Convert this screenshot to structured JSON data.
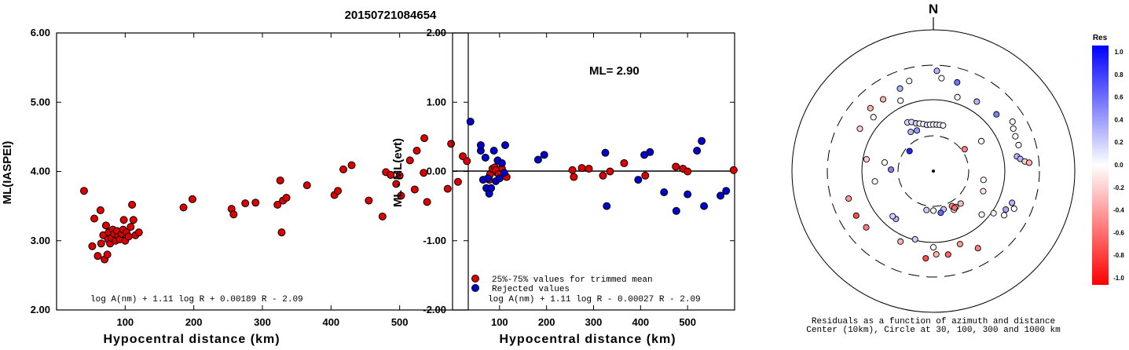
{
  "title": "20150721084654",
  "colors": {
    "red": "#dd0000",
    "blue": "#0000cc"
  },
  "chart_data": [
    {
      "type": "scatter",
      "id": "ml_vs_distance",
      "xlabel": "Hypocentral distance (km)",
      "ylabel": "ML(IASPEI)",
      "xlim": [
        0,
        600
      ],
      "ylim": [
        2.0,
        6.0
      ],
      "xticks": [
        "100",
        "200",
        "300",
        "400",
        "500"
      ],
      "yticks": [
        "2.00",
        "3.00",
        "4.00",
        "5.00",
        "6.00"
      ],
      "formula": "log A(nm) + 1.11 log R + 0.00189 R - 2.09",
      "series": [
        {
          "color": "red",
          "x": [
            40,
            52,
            55,
            60,
            64,
            65,
            68,
            70,
            72,
            74,
            75,
            76,
            78,
            80,
            82,
            84,
            86,
            88,
            90,
            92,
            95,
            97,
            98,
            100,
            102,
            105,
            108,
            110,
            112,
            115,
            120,
            185,
            198,
            255,
            258,
            275,
            290,
            322,
            326,
            328,
            330,
            335,
            365,
            405,
            410,
            418,
            430,
            455,
            475,
            480,
            487,
            495,
            500,
            502,
            515,
            522,
            525,
            535,
            536,
            540,
            570,
            575,
            585,
            592,
            598
          ],
          "y": [
            3.72,
            2.92,
            3.32,
            2.78,
            3.44,
            2.96,
            3.08,
            2.73,
            3.22,
            2.8,
            3.02,
            3.12,
            2.96,
            3.04,
            3.16,
            3.1,
            3.0,
            3.14,
            3.06,
            3.02,
            3.1,
            3.16,
            3.3,
            3.0,
            3.12,
            3.06,
            3.2,
            3.52,
            3.3,
            3.08,
            3.12,
            3.48,
            3.6,
            3.46,
            3.38,
            3.54,
            3.55,
            3.52,
            3.87,
            3.12,
            3.58,
            3.62,
            3.8,
            3.66,
            3.72,
            4.03,
            4.09,
            3.58,
            3.35,
            3.99,
            3.95,
            3.82,
            3.94,
            3.65,
            4.16,
            3.74,
            4.3,
            3.98,
            4.48,
            3.56,
            3.75,
            4.4,
            3.85,
            4.22,
            4.15
          ]
        }
      ]
    },
    {
      "type": "scatter",
      "id": "residuals_vs_distance",
      "xlabel": "Hypocentral distance (km)",
      "ylabel": "ML - ML(evt)",
      "xlim": [
        0,
        600
      ],
      "ylim": [
        -2.0,
        2.0
      ],
      "xticks": [
        "100",
        "200",
        "300",
        "400",
        "500"
      ],
      "yticks": [
        "-2.00",
        "-1.00",
        "0.00",
        "1.00",
        "2.00"
      ],
      "annotation": "ML= 2.90",
      "formula": "log A(nm) + 1.11 log R - 0.00027 R - 2.09",
      "series": [
        {
          "name": "25%-75% values for trimmed mean",
          "color": "red",
          "x": [
            80,
            85,
            90,
            95,
            100,
            105,
            110,
            115,
            78,
            92,
            98,
            255,
            258,
            275,
            290,
            320,
            335,
            365,
            410,
            475,
            490,
            500,
            598
          ],
          "y": [
            -0.04,
            0.04,
            0.06,
            -0.02,
            0.0,
            0.04,
            -0.06,
            -0.08,
            -0.12,
            0.02,
            -0.04,
            0.02,
            -0.08,
            0.05,
            0.04,
            -0.06,
            0.0,
            0.12,
            -0.06,
            0.07,
            0.04,
            0.0,
            0.02
          ]
        },
        {
          "name": "Rejected values",
          "color": "blue",
          "x": [
            38,
            60,
            65,
            70,
            72,
            75,
            78,
            82,
            88,
            92,
            96,
            100,
            105,
            110,
            112,
            60,
            182,
            195,
            325,
            328,
            395,
            408,
            420,
            450,
            476,
            500,
            520,
            530,
            535,
            570,
            582
          ],
          "y": [
            0.72,
            0.3,
            -0.12,
            0.2,
            -0.24,
            -0.1,
            -0.32,
            -0.24,
            0.3,
            -0.14,
            0.16,
            -0.1,
            0.12,
            -0.02,
            0.38,
            0.38,
            0.17,
            0.24,
            0.27,
            -0.5,
            -0.12,
            0.24,
            0.28,
            -0.3,
            -0.57,
            -0.33,
            0.3,
            0.44,
            -0.5,
            -0.35,
            -0.28
          ]
        }
      ]
    },
    {
      "type": "scatter",
      "id": "azimuth_residuals",
      "direction_label": "N",
      "caption_line1": "Residuals as a function of azimuth and distance",
      "caption_line2": "Center (10km), Circle at 30, 100, 300 and 1000 km",
      "colorbar_title": "Res",
      "colorbar_ticks": [
        "1.0",
        "0.8",
        "0.6",
        "0.4",
        "0.2",
        "0.0",
        "-0.2",
        "-0.4",
        "-0.6",
        "-0.8",
        "-1.0"
      ],
      "points": [
        {
          "azimuth": 2,
          "r": 0.71,
          "res": 0.3
        },
        {
          "azimuth": 5,
          "r": 0.66,
          "res": 0.0
        },
        {
          "azimuth": 15,
          "r": 0.65,
          "res": 0.55
        },
        {
          "azimuth": 18,
          "r": 0.55,
          "res": 0.0
        },
        {
          "azimuth": 32,
          "r": 0.58,
          "res": 0.3
        },
        {
          "azimuth": -25,
          "r": 0.55,
          "res": 0.0
        },
        {
          "azimuth": -45,
          "r": 0.63,
          "res": -0.3
        },
        {
          "azimuth": -28,
          "r": 0.39,
          "res": 0.15
        },
        {
          "azimuth": -24,
          "r": 0.38,
          "res": 0.15
        },
        {
          "azimuth": -20,
          "r": 0.36,
          "res": 0.2
        },
        {
          "azimuth": -16,
          "r": 0.35,
          "res": 0.0
        },
        {
          "azimuth": -12,
          "r": 0.34,
          "res": 0.0
        },
        {
          "azimuth": -8,
          "r": 0.33,
          "res": 0.15
        },
        {
          "azimuth": -4,
          "r": 0.33,
          "res": 0.0
        },
        {
          "azimuth": 0,
          "r": 0.33,
          "res": 0.0
        },
        {
          "azimuth": 4,
          "r": 0.33,
          "res": 0.1
        },
        {
          "azimuth": 8,
          "r": 0.33,
          "res": 0.0
        },
        {
          "azimuth": 12,
          "r": 0.33,
          "res": 0.05
        },
        {
          "azimuth": -30,
          "r": 0.32,
          "res": 0.3
        },
        {
          "azimuth": -22,
          "r": 0.31,
          "res": 0.4
        },
        {
          "azimuth": -50,
          "r": 0.22,
          "res": 0.85
        },
        {
          "azimuth": -80,
          "r": 0.35,
          "res": 0.0
        },
        {
          "azimuth": 55,
          "r": 0.27,
          "res": -0.5
        },
        {
          "azimuth": 58,
          "r": 0.4,
          "res": 0.0
        },
        {
          "azimuth": 48,
          "r": 0.6,
          "res": 0.5
        },
        {
          "azimuth": 58,
          "r": 0.66,
          "res": 0.0
        },
        {
          "azimuth": 62,
          "r": 0.64,
          "res": 0.0
        },
        {
          "azimuth": 67,
          "r": 0.63,
          "res": 0.0
        },
        {
          "azimuth": 73,
          "r": 0.63,
          "res": 0.0
        },
        {
          "azimuth": 80,
          "r": 0.6,
          "res": 0.3
        },
        {
          "azimuth": 82,
          "r": 0.62,
          "res": 0.3
        },
        {
          "azimuth": 84,
          "r": 0.65,
          "res": -0.2
        },
        {
          "azimuth": 85,
          "r": 0.68,
          "res": -0.3
        },
        {
          "azimuth": 100,
          "r": 0.36,
          "res": 0.0
        },
        {
          "azimuth": 112,
          "r": 0.38,
          "res": -0.1
        },
        {
          "azimuth": 112,
          "r": 0.6,
          "res": 0.3
        },
        {
          "azimuth": 115,
          "r": 0.63,
          "res": 0.0
        },
        {
          "azimuth": 118,
          "r": 0.58,
          "res": 0.35
        },
        {
          "azimuth": 122,
          "r": 0.59,
          "res": 0.0
        },
        {
          "azimuth": 125,
          "r": 0.52,
          "res": 0.0
        },
        {
          "azimuth": 132,
          "r": 0.46,
          "res": 0.0
        },
        {
          "azimuth": 140,
          "r": 0.3,
          "res": -0.25
        },
        {
          "azimuth": 148,
          "r": 0.3,
          "res": 0.0
        },
        {
          "azimuth": 152,
          "r": 0.28,
          "res": -0.5
        },
        {
          "azimuth": 152,
          "r": 0.31,
          "res": 0.0
        },
        {
          "azimuth": 150,
          "r": 0.3,
          "res": -0.6
        },
        {
          "azimuth": 165,
          "r": 0.28,
          "res": 0.25
        },
        {
          "azimuth": 170,
          "r": 0.3,
          "res": 0.6
        },
        {
          "azimuth": 180,
          "r": 0.28,
          "res": 0.0
        },
        {
          "azimuth": 190,
          "r": 0.28,
          "res": 0.2
        },
        {
          "azimuth": 160,
          "r": 0.55,
          "res": -0.4
        },
        {
          "azimuth": 170,
          "r": 0.6,
          "res": -0.6
        },
        {
          "azimuth": 180,
          "r": 0.54,
          "res": 0.0
        },
        {
          "azimuth": 178,
          "r": 0.59,
          "res": -0.3
        },
        {
          "azimuth": 185,
          "r": 0.62,
          "res": -0.7
        },
        {
          "azimuth": 150,
          "r": 0.63,
          "res": -0.5
        },
        {
          "azimuth": 195,
          "r": 0.5,
          "res": 0.2
        },
        {
          "azimuth": 205,
          "r": 0.55,
          "res": -0.3
        },
        {
          "azimuth": 218,
          "r": 0.43,
          "res": 0.3
        },
        {
          "azimuth": 222,
          "r": 0.43,
          "res": 0.2
        },
        {
          "azimuth": 240,
          "r": 0.63,
          "res": -0.7
        },
        {
          "azimuth": 252,
          "r": 0.63,
          "res": -0.4
        },
        {
          "azimuth": 260,
          "r": 0.42,
          "res": 0.0
        },
        {
          "azimuth": 272,
          "r": 0.3,
          "res": 0.5
        },
        {
          "azimuth": 280,
          "r": 0.48,
          "res": -0.2
        },
        {
          "azimuth": 230,
          "r": 0.62,
          "res": -0.5
        },
        {
          "azimuth": 300,
          "r": 0.6,
          "res": -0.2
        },
        {
          "azimuth": 312,
          "r": 0.57,
          "res": 0.0
        },
        {
          "azimuth": 325,
          "r": 0.62,
          "res": -0.3
        },
        {
          "azimuth": 338,
          "r": 0.63,
          "res": 0.3
        },
        {
          "azimuth": 345,
          "r": 0.66,
          "res": 0.0
        }
      ]
    }
  ]
}
